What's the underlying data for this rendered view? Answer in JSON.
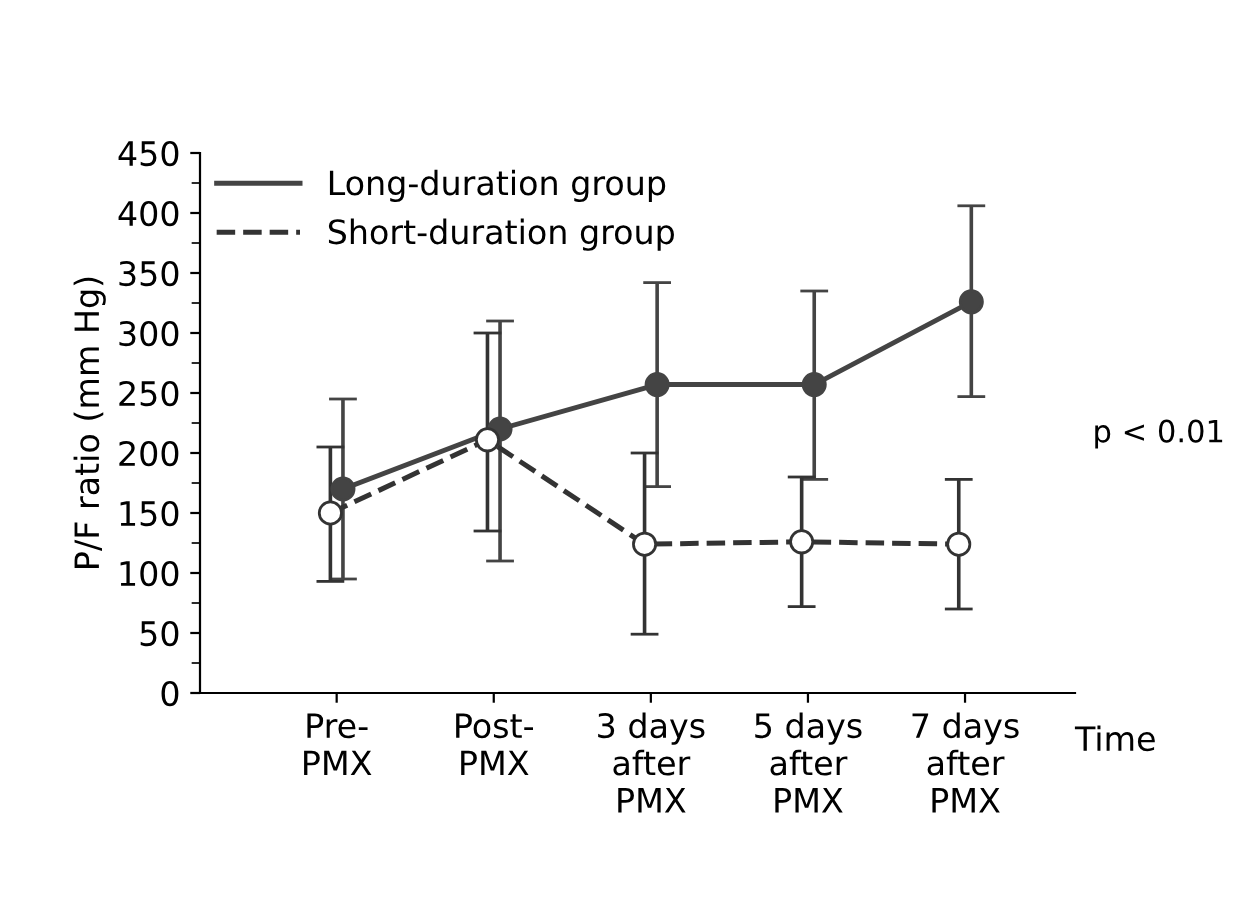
{
  "chart_data": {
    "type": "line",
    "ylabel": "P/F ratio (mm Hg)",
    "xlabel": "Time",
    "categories": [
      "Pre-\nPMX",
      "Post-\nPMX",
      "3 days\nafter\nPMX",
      "5 days\nafter\nPMX",
      "7 days\nafter\nPMX"
    ],
    "series": [
      {
        "name": "Long-duration group",
        "color": "#444444",
        "line_style": "solid",
        "marker": "circle",
        "values": [
          170,
          220,
          257,
          257,
          326
        ],
        "errors": [
          [
            95,
            245
          ],
          [
            110,
            310
          ],
          [
            172,
            342
          ],
          [
            178,
            335
          ],
          [
            247,
            406
          ]
        ]
      },
      {
        "name": "Short-duration group",
        "color": "#333333",
        "line_style": "dashed",
        "marker": "circle",
        "values": [
          150,
          211,
          124,
          126,
          124
        ],
        "errors": [
          [
            93,
            205
          ],
          [
            135,
            300
          ],
          [
            49,
            200
          ],
          [
            72,
            180
          ],
          [
            70,
            178
          ]
        ]
      }
    ],
    "ylim": [
      0,
      450
    ],
    "yticks": [
      0,
      50,
      100,
      150,
      200,
      250,
      300,
      350,
      400,
      450
    ],
    "annotations": [
      "p < 0.01"
    ],
    "legend": "top left",
    "grid": false
  }
}
